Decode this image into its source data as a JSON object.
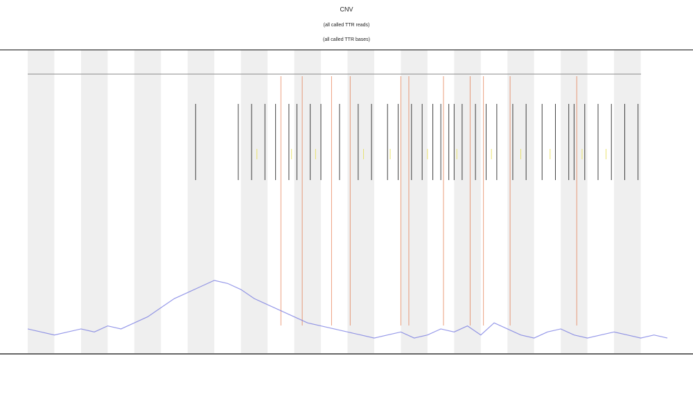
{
  "chart_data": {
    "type": "line",
    "title": "CNV",
    "subtitle": [
      "(all called TTR reads)",
      "(all called TTR bases)"
    ],
    "xlim": [
      0,
      24
    ],
    "ylim": [
      0,
      1
    ],
    "x": [
      0,
      0.5,
      1,
      1.5,
      2,
      2.5,
      3,
      3.5,
      4,
      4.5,
      5,
      5.5,
      6,
      6.5,
      7,
      7.5,
      8,
      8.5,
      9,
      9.5,
      10,
      10.5,
      11,
      11.5,
      12,
      12.5,
      13,
      13.5,
      14,
      14.5,
      15,
      15.5,
      16,
      16.5,
      17,
      17.5,
      18,
      18.5,
      19,
      19.5,
      20,
      20.5,
      21,
      21.5,
      22,
      22.5,
      23,
      23.5,
      24
    ],
    "series": [
      {
        "color": "#6a6ee0",
        "values": [
          0.08,
          0.07,
          0.06,
          0.07,
          0.08,
          0.07,
          0.09,
          0.08,
          0.1,
          0.12,
          0.15,
          0.18,
          0.2,
          0.22,
          0.24,
          0.23,
          0.21,
          0.18,
          0.16,
          0.14,
          0.12,
          0.1,
          0.09,
          0.08,
          0.07,
          0.06,
          0.05,
          0.06,
          0.07,
          0.05,
          0.06,
          0.08,
          0.07,
          0.09,
          0.06,
          0.1,
          0.08,
          0.06,
          0.05,
          0.07,
          0.08,
          0.06,
          0.05,
          0.06,
          0.07,
          0.06,
          0.05,
          0.06,
          0.05
        ]
      }
    ],
    "markers": [
      {
        "color": "#e0602a",
        "x": [
          9.5,
          10.3,
          11.4,
          12.1,
          14.0,
          14.3,
          15.6,
          16.6,
          17.1,
          18.1,
          20.6
        ]
      },
      {
        "color": "#111111",
        "x": [
          6.3,
          7.9,
          8.4,
          8.9,
          9.3,
          9.8,
          10.1,
          10.6,
          11.0,
          11.7,
          12.4,
          12.9,
          13.5,
          13.9,
          14.4,
          14.8,
          15.2,
          15.5,
          15.8,
          16.0,
          16.3,
          16.8,
          17.2,
          17.6,
          18.2,
          18.7,
          19.3,
          19.8,
          20.3,
          20.5,
          20.9,
          21.4,
          21.9,
          22.4,
          22.9
        ]
      },
      {
        "color": "#e8e060",
        "x": [
          8.6,
          9.9,
          10.8,
          12.6,
          13.6,
          15.0,
          16.1,
          17.4,
          18.5,
          19.6,
          20.8,
          21.7
        ]
      }
    ]
  }
}
